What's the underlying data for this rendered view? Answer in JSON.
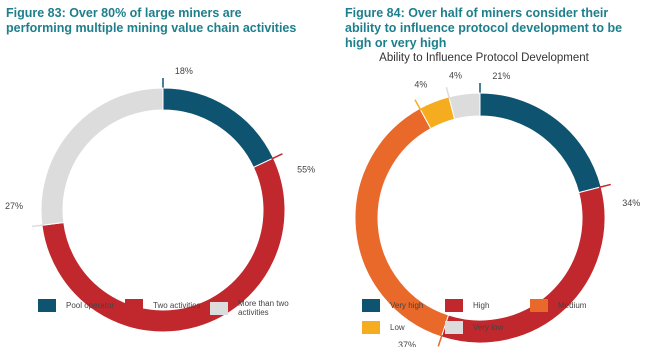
{
  "chart_data": [
    {
      "type": "donut",
      "title": "Figure 83: Over 80% of large miners are performing multiple mining value chain activities",
      "categories": [
        "Pool operator",
        "Two activities",
        "More than two activities"
      ],
      "values": [
        18,
        55,
        27
      ],
      "value_labels": [
        "18%",
        "55%",
        "27%"
      ],
      "colors": [
        "#0e5470",
        "#c0282d",
        "#dcdcdc"
      ]
    },
    {
      "type": "donut",
      "title": "Figure 84: Over half of miners consider their ability to influence protocol development to be high or very high",
      "subtitle": "Ability to Influence Protocol Development",
      "categories": [
        "Very high",
        "High",
        "Medium",
        "Low",
        "Very low"
      ],
      "values": [
        21,
        34,
        37,
        4,
        4
      ],
      "value_labels": [
        "21%",
        "34%",
        "37%",
        "4%",
        "4%"
      ],
      "colors": [
        "#0e5470",
        "#c0282d",
        "#e8692a",
        "#f5ac1f",
        "#dcdcdc"
      ]
    }
  ]
}
